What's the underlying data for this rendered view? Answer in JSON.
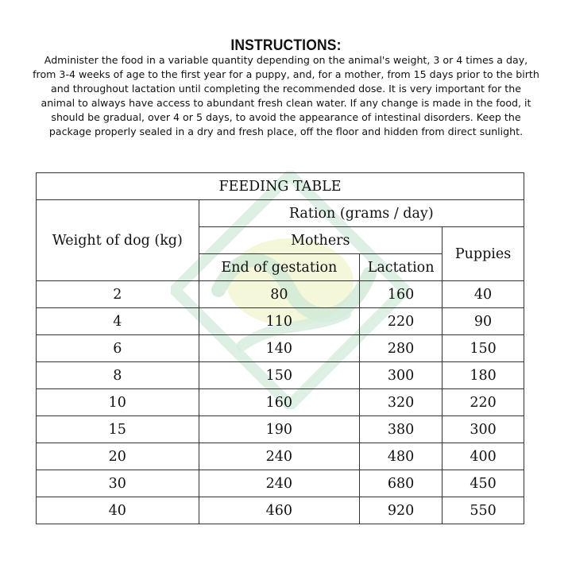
{
  "instructions": {
    "title": "INSTRUCTIONS:",
    "lines": [
      "Administer the food in a variable quantity depending on the animal's weight, 3 or 4 times a day,",
      "from 3-4 weeks of age to the first year for a puppy, and, for a mother, from 15 days prior to the birth",
      "and throughout lactation until completing the recommended dose. It is very important for the",
      "animal to always have access to abundant fresh clean water. If any change is made in the food, it",
      "should be gradual, over 4 or 5 days, to avoid the appearance of intestinal disorders. Keep the",
      "package properly sealed in a dry and fresh place, off the floor and hidden from direct sunlight."
    ]
  },
  "table": {
    "title": "FEEDING TABLE",
    "headers": {
      "weight": "Weight of dog (kg)",
      "ration": "Ration (grams / day)",
      "mothers": "Mothers",
      "end_gestation": "End of gestation",
      "lactation": "Lactation",
      "puppies": "Puppies"
    },
    "rows": [
      [
        "2",
        "80",
        "160",
        "40"
      ],
      [
        "4",
        "110",
        "220",
        "90"
      ],
      [
        "6",
        "140",
        "280",
        "150"
      ],
      [
        "8",
        "150",
        "300",
        "180"
      ],
      [
        "10",
        "160",
        "320",
        "220"
      ],
      [
        "15",
        "190",
        "380",
        "300"
      ],
      [
        "20",
        "240",
        "480",
        "400"
      ],
      [
        "30",
        "240",
        "680",
        "450"
      ],
      [
        "40",
        "460",
        "920",
        "550"
      ]
    ]
  },
  "watermark": {
    "colors": [
      "#cfe8d6",
      "#eef3c4"
    ]
  }
}
